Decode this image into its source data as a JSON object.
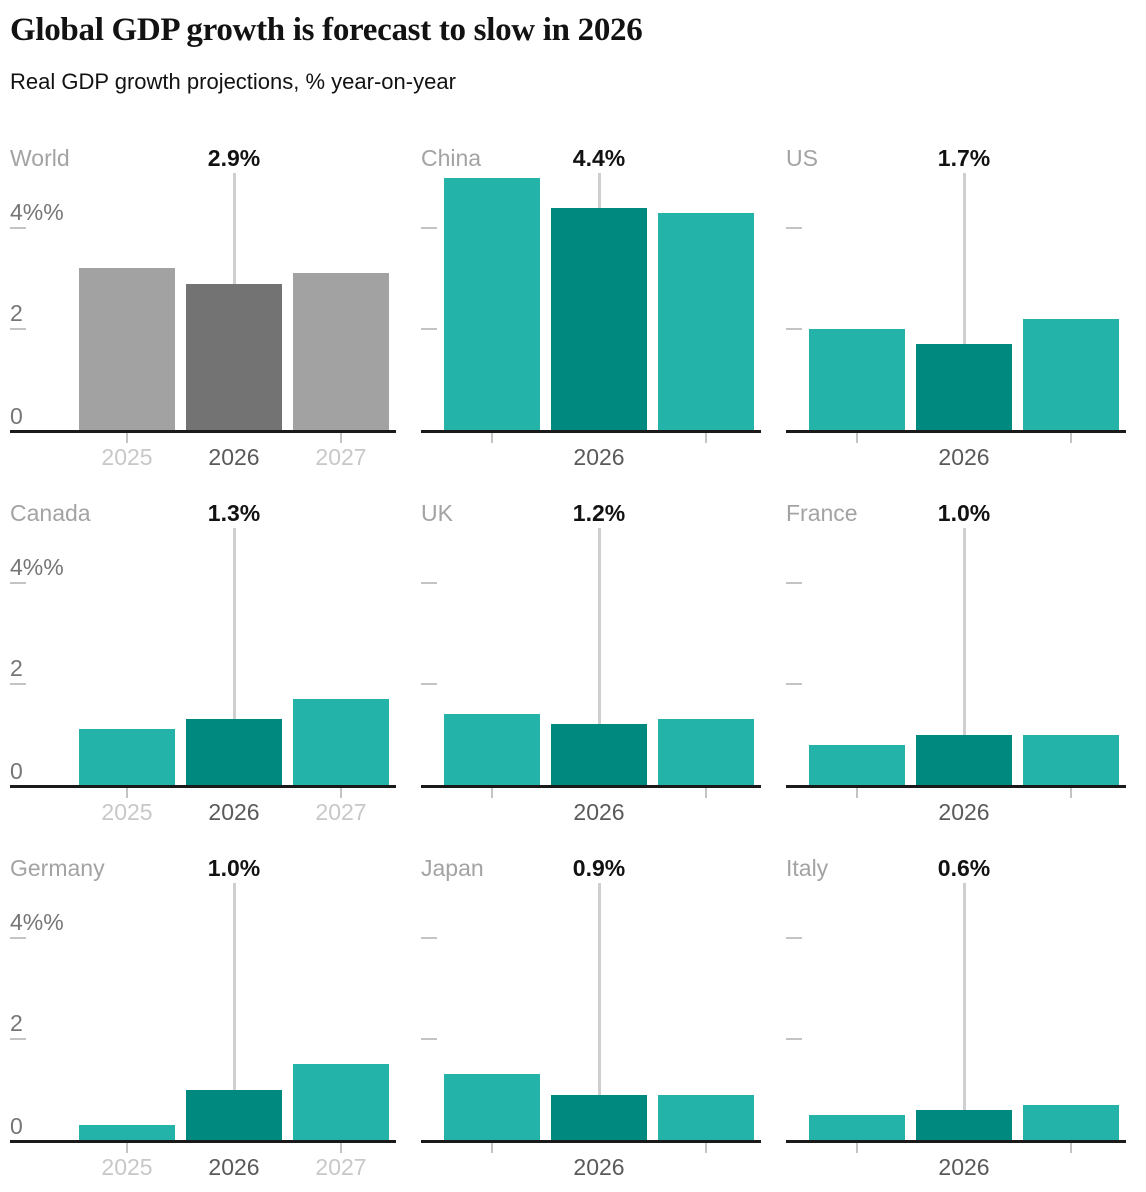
{
  "header": {
    "title": "Global GDP growth is forecast to slow in 2026",
    "subtitle": "Real GDP growth projections, % year-on-year"
  },
  "colors": {
    "teal": "#24b3a8",
    "teal_dark": "#00897e",
    "gray_light": "#a2a2a2",
    "gray_dark": "#737373",
    "panel_title": "#a3a3a3",
    "axis_label": "#767676",
    "year_active": "#5a5a5a",
    "year_faded": "#c8c8c8",
    "tick": "#c4c4c4",
    "annotation_line": "#cfcfcf",
    "annotation_text": "#121212",
    "baseline": "#1a1a1a"
  },
  "chart_data": {
    "type": "bar",
    "title": "Global GDP growth is forecast to slow in 2026",
    "subtitle": "Real GDP growth projections, % year-on-year",
    "layout": "small-multiples 3x3",
    "categories": [
      "2025",
      "2026",
      "2027"
    ],
    "highlight_category": "2026",
    "y_axis": {
      "ticks": [
        0,
        2,
        4
      ],
      "tick_labels": [
        "0",
        "2",
        "4%%"
      ],
      "ylim": [
        0,
        5.2
      ],
      "grid": "left-edge tick marks only"
    },
    "x_axis": {
      "ticks_shown": [
        "2025",
        "2027"
      ],
      "left_column_shows_all_year_labels": true,
      "other_columns_show_only": "2026"
    },
    "panels": [
      {
        "label": "World",
        "annotation": "2.9%",
        "values": [
          3.2,
          2.9,
          3.1
        ],
        "palette": "gray",
        "show_y_labels": true,
        "show_all_years": true
      },
      {
        "label": "China",
        "annotation": "4.4%",
        "values": [
          5.0,
          4.4,
          4.3
        ],
        "palette": "teal",
        "show_y_labels": false,
        "show_all_years": false
      },
      {
        "label": "US",
        "annotation": "1.7%",
        "values": [
          2.0,
          1.7,
          2.2
        ],
        "palette": "teal",
        "show_y_labels": false,
        "show_all_years": false
      },
      {
        "label": "Canada",
        "annotation": "1.3%",
        "values": [
          1.1,
          1.3,
          1.7
        ],
        "palette": "teal",
        "show_y_labels": true,
        "show_all_years": true
      },
      {
        "label": "UK",
        "annotation": "1.2%",
        "values": [
          1.4,
          1.2,
          1.3
        ],
        "palette": "teal",
        "show_y_labels": false,
        "show_all_years": false
      },
      {
        "label": "France",
        "annotation": "1.0%",
        "values": [
          0.8,
          1.0,
          1.0
        ],
        "palette": "teal",
        "show_y_labels": false,
        "show_all_years": false
      },
      {
        "label": "Germany",
        "annotation": "1.0%",
        "values": [
          0.3,
          1.0,
          1.5
        ],
        "palette": "teal",
        "show_y_labels": true,
        "show_all_years": true
      },
      {
        "label": "Japan",
        "annotation": "0.9%",
        "values": [
          1.3,
          0.9,
          0.9
        ],
        "palette": "teal",
        "show_y_labels": false,
        "show_all_years": false
      },
      {
        "label": "Italy",
        "annotation": "0.6%",
        "values": [
          0.5,
          0.6,
          0.7
        ],
        "palette": "teal",
        "show_y_labels": false,
        "show_all_years": false
      }
    ]
  }
}
